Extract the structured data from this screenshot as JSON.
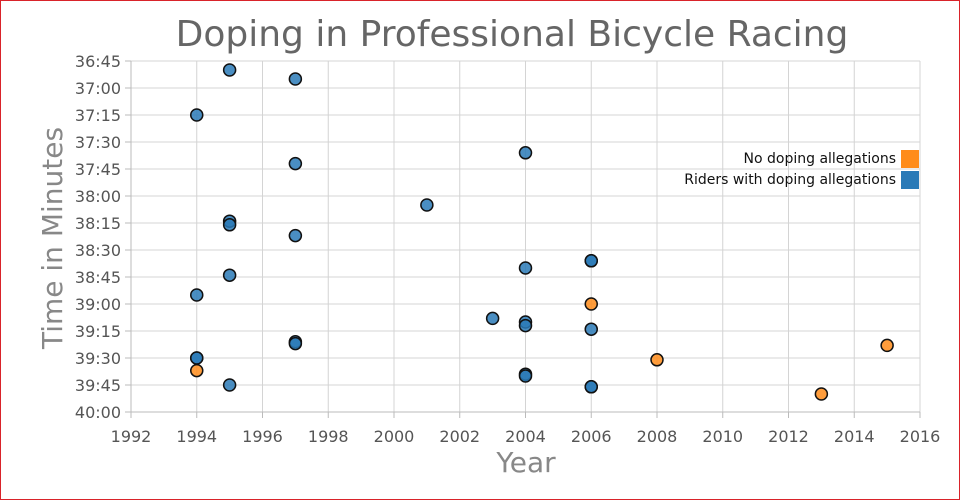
{
  "chart_data": {
    "type": "scatter",
    "title": "Doping in Professional Bicycle Racing",
    "xlabel": "Year",
    "ylabel": "Time in Minutes",
    "xlim": [
      1992,
      2016
    ],
    "ylim_seconds": [
      2205,
      2400
    ],
    "y_inverted": true,
    "grid": true,
    "legend_placement": "right",
    "x_ticks": [
      "1992",
      "1994",
      "1996",
      "1998",
      "2000",
      "2002",
      "2004",
      "2006",
      "2008",
      "2010",
      "2012",
      "2014",
      "2016"
    ],
    "y_ticks": [
      "36:45",
      "37:00",
      "37:15",
      "37:30",
      "37:45",
      "38:00",
      "38:15",
      "38:30",
      "38:45",
      "39:00",
      "39:15",
      "39:30",
      "39:45",
      "40:00"
    ],
    "series": [
      {
        "name": "No doping allegations",
        "color": "#ff8c1a",
        "points": [
          {
            "x": 1994,
            "y": "39:37"
          },
          {
            "x": 2006,
            "y": "39:00"
          },
          {
            "x": 2008,
            "y": "39:31"
          },
          {
            "x": 2013,
            "y": "39:50"
          },
          {
            "x": 2015,
            "y": "39:23"
          }
        ]
      },
      {
        "name": "Riders with doping allegations",
        "color": "#2a7ab7",
        "points": [
          {
            "x": 1995,
            "y": "36:50"
          },
          {
            "x": 1997,
            "y": "36:55"
          },
          {
            "x": 1994,
            "y": "37:15"
          },
          {
            "x": 2004,
            "y": "37:36"
          },
          {
            "x": 1997,
            "y": "37:42"
          },
          {
            "x": 2001,
            "y": "38:05"
          },
          {
            "x": 1995,
            "y": "38:14"
          },
          {
            "x": 1995,
            "y": "38:16"
          },
          {
            "x": 1997,
            "y": "38:22"
          },
          {
            "x": 2006,
            "y": "38:36"
          },
          {
            "x": 2006,
            "y": "38:36"
          },
          {
            "x": 2004,
            "y": "38:40"
          },
          {
            "x": 1995,
            "y": "38:44"
          },
          {
            "x": 1994,
            "y": "38:55"
          },
          {
            "x": 2003,
            "y": "39:08"
          },
          {
            "x": 2004,
            "y": "39:10"
          },
          {
            "x": 2004,
            "y": "39:12"
          },
          {
            "x": 2006,
            "y": "39:14"
          },
          {
            "x": 1997,
            "y": "39:21"
          },
          {
            "x": 1997,
            "y": "39:22"
          },
          {
            "x": 1994,
            "y": "39:30"
          },
          {
            "x": 1994,
            "y": "39:30"
          },
          {
            "x": 2004,
            "y": "39:39"
          },
          {
            "x": 2004,
            "y": "39:40"
          },
          {
            "x": 1995,
            "y": "39:45"
          },
          {
            "x": 2006,
            "y": "39:46"
          },
          {
            "x": 2006,
            "y": "39:46"
          }
        ]
      }
    ]
  }
}
